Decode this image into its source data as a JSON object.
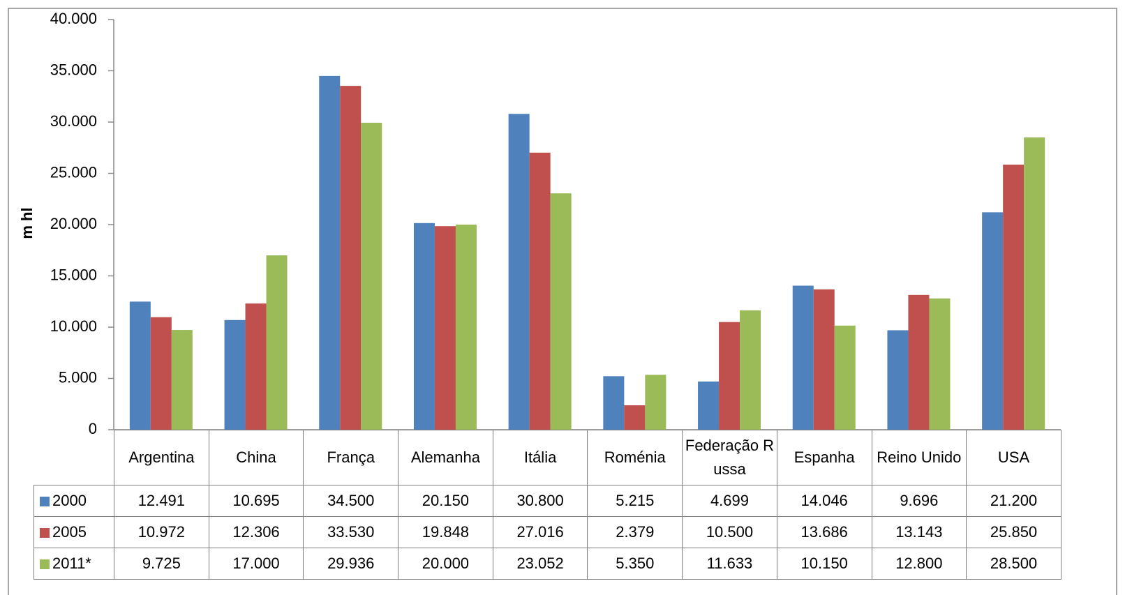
{
  "chart_data": {
    "type": "bar",
    "y_label": "m hl",
    "categories": [
      "Argentina",
      "China",
      "França",
      "Alemanha",
      "Itália",
      "Roménia",
      "Federação Russa",
      "Espanha",
      "Reino Unido",
      "USA"
    ],
    "series": [
      {
        "name": "2000",
        "color": "#4f81bd",
        "values": [
          12491,
          10695,
          34500,
          20150,
          30800,
          5215,
          4699,
          14046,
          9696,
          21200
        ],
        "value_labels": [
          "12.491",
          "10.695",
          "34.500",
          "20.150",
          "30.800",
          "5.215",
          "4.699",
          "14.046",
          "9.696",
          "21.200"
        ]
      },
      {
        "name": "2005",
        "color": "#c0504d",
        "values": [
          10972,
          12306,
          33530,
          19848,
          27016,
          2379,
          10500,
          13686,
          13143,
          25850
        ],
        "value_labels": [
          "10.972",
          "12.306",
          "33.530",
          "19.848",
          "27.016",
          "2.379",
          "10.500",
          "13.686",
          "13.143",
          "25.850"
        ]
      },
      {
        "name": "2011*",
        "color": "#9bbb59",
        "values": [
          9725,
          17000,
          29936,
          20000,
          23052,
          5350,
          11633,
          10150,
          12800,
          28500
        ],
        "value_labels": [
          "9.725",
          "17.000",
          "29.936",
          "20.000",
          "23.052",
          "5.350",
          "11.633",
          "10.150",
          "12.800",
          "28.500"
        ]
      }
    ],
    "ylim": [
      0,
      40000
    ],
    "yticks": [
      0,
      {
        "value": 5000,
        "label": "5.000"
      },
      {
        "value": 10000,
        "label": "10.000"
      },
      {
        "value": 15000,
        "label": "15.000"
      },
      {
        "value": 20000,
        "label": "20.000"
      },
      {
        "value": 25000,
        "label": "25.000"
      },
      {
        "value": 30000,
        "label": "30.000"
      },
      {
        "value": 35000,
        "label": "35.000"
      },
      {
        "value": 40000,
        "label": "40.000"
      }
    ],
    "grid": false
  }
}
